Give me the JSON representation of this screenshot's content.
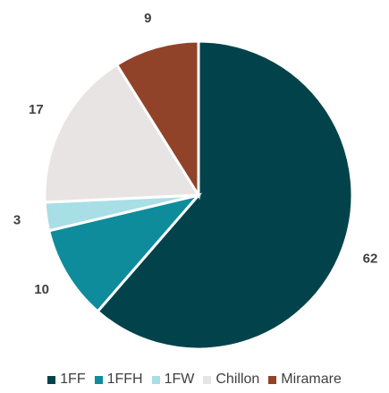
{
  "chart_data": {
    "type": "pie",
    "categories": [
      "1FF",
      "1FFH",
      "1FW",
      "Chillon",
      "Miramare"
    ],
    "values": [
      62,
      10,
      3,
      17,
      9
    ],
    "colors": [
      "#02434b",
      "#0e8c9c",
      "#a8dee5",
      "#e9e4e4",
      "#91432a"
    ],
    "legend": "bottom"
  }
}
